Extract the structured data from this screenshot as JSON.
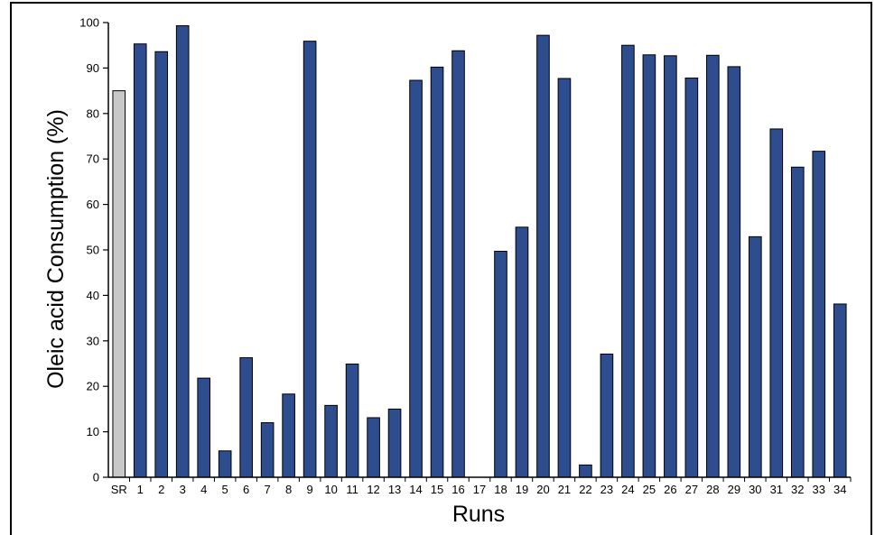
{
  "chart_data": {
    "type": "bar",
    "title": "",
    "xlabel": "Runs",
    "ylabel": "Oleic acid Consumption (%)",
    "ylim": [
      0,
      100
    ],
    "yticks": [
      0,
      10,
      20,
      30,
      40,
      50,
      60,
      70,
      80,
      90,
      100
    ],
    "grid": false,
    "categories": [
      "SR",
      "1",
      "2",
      "3",
      "4",
      "5",
      "6",
      "7",
      "8",
      "9",
      "10",
      "11",
      "12",
      "13",
      "14",
      "15",
      "16",
      "17",
      "18",
      "19",
      "20",
      "21",
      "22",
      "23",
      "24",
      "25",
      "26",
      "27",
      "28",
      "29",
      "30",
      "31",
      "32",
      "33",
      "34"
    ],
    "values": [
      85,
      95.3,
      93.6,
      99.3,
      21.8,
      5.8,
      26.3,
      12.0,
      18.3,
      95.9,
      15.8,
      24.9,
      13.1,
      15.0,
      87.3,
      90.2,
      93.8,
      0,
      49.7,
      55.0,
      97.2,
      87.7,
      2.7,
      27.1,
      95.0,
      92.9,
      92.7,
      87.8,
      92.8,
      90.3,
      52.9,
      76.6,
      68.2,
      71.7,
      38.1
    ],
    "colors": {
      "reference_bar": "#c8c8c8",
      "run_bar": "#2e4d8e",
      "bar_outline": "#000000",
      "axis": "#000000"
    }
  }
}
